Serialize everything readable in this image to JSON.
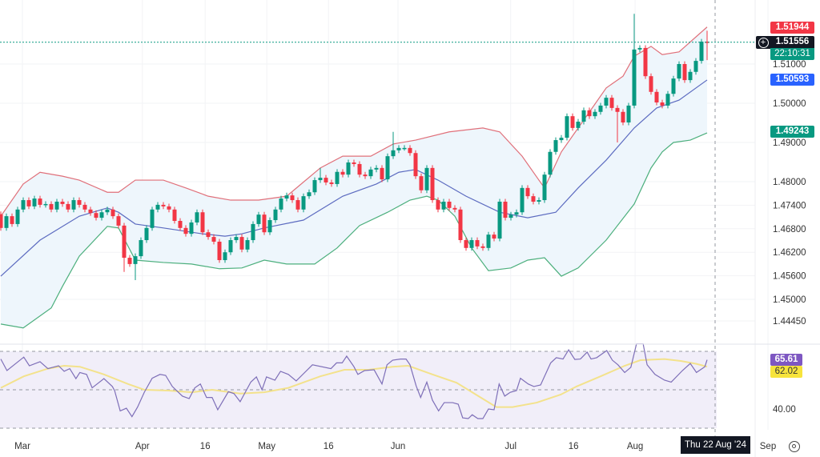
{
  "colors": {
    "up": "#089981",
    "down": "#f23645",
    "bb_upper": "#e0707a",
    "bb_mid": "#5c6bc0",
    "bb_lower": "#4caf7d",
    "bb_fill": "#eef6fc",
    "rsi": "#7e6fb8",
    "rsi_ma": "#f3e28c",
    "rsi_bg": "#f1eef9",
    "last_price": "#089981"
  },
  "chart_data": {
    "type": "candlestick",
    "x_axis_labels": [
      {
        "label": "Mar",
        "bar": 2
      },
      {
        "label": "Apr",
        "bar": 23.4
      },
      {
        "label": "16",
        "bar": 34.6
      },
      {
        "label": "May",
        "bar": 45.6
      },
      {
        "label": "16",
        "bar": 56.6
      },
      {
        "label": "Jun",
        "bar": 69
      },
      {
        "label": "Jul",
        "bar": 89.1
      },
      {
        "label": "16",
        "bar": 100.3
      },
      {
        "label": "Aug",
        "bar": 111.3
      },
      {
        "label": "Sep",
        "bar": 135
      }
    ],
    "y_axis_labels": [
      "1.51000",
      "1.50000",
      "1.49000",
      "1.48000",
      "1.47400",
      "1.46800",
      "1.46200",
      "1.45600",
      "1.45000",
      "1.44450"
    ],
    "first_open": 1.4717,
    "close": [
      1.4682,
      1.4712,
      1.4692,
      1.4729,
      1.4753,
      1.4737,
      1.4757,
      1.4741,
      1.4743,
      1.4729,
      1.4749,
      1.4743,
      1.4729,
      1.4753,
      1.4741,
      1.4729,
      1.472,
      1.4708,
      1.4722,
      1.4729,
      1.4712,
      1.4688,
      1.4606,
      1.459,
      1.461,
      1.4651,
      1.4682,
      1.4729,
      1.4741,
      1.4737,
      1.4729,
      1.47,
      1.4682,
      1.4667,
      1.4696,
      1.4722,
      1.4671,
      1.4659,
      1.4647,
      1.46,
      1.462,
      1.4651,
      1.4659,
      1.4627,
      1.4651,
      1.4692,
      1.4716,
      1.4671,
      1.4702,
      1.4729,
      1.4757,
      1.4765,
      1.4753,
      1.4729,
      1.4763,
      1.4773,
      1.4804,
      1.481,
      1.4798,
      1.4794,
      1.4825,
      1.4818,
      1.4849,
      1.4845,
      1.4818,
      1.4814,
      1.4831,
      1.4835,
      1.4806,
      1.4865,
      1.488,
      1.4886,
      1.4886,
      1.4873,
      1.4814,
      1.4778,
      1.4835,
      1.4753,
      1.4729,
      1.4749,
      1.4733,
      1.4729,
      1.4651,
      1.4631,
      1.4651,
      1.4635,
      1.4631,
      1.4665,
      1.4655,
      1.4749,
      1.4708,
      1.4716,
      1.4722,
      1.4784,
      1.4763,
      1.4749,
      1.4753,
      1.4818,
      1.4876,
      1.4906,
      1.4912,
      1.4967,
      1.4937,
      1.4953,
      1.4982,
      1.4967,
      1.4978,
      1.4994,
      1.5014,
      1.4988,
      1.4978,
      1.4951,
      1.4994,
      1.5137,
      1.5141,
      1.5069,
      1.5029,
      1.5002,
      1.4994,
      1.5024,
      1.5063,
      1.51,
      1.5059,
      1.508,
      1.5108,
      1.5157,
      1.51556
    ],
    "default_wick": 0.0007,
    "wick_highs": {
      "70": 1.4927,
      "113": 1.5228,
      "126": 1.5185,
      "57": 1.4835
    },
    "wick_lows": {
      "24": 1.4549,
      "22": 1.457,
      "110": 1.49,
      "126": 1.511
    },
    "bollinger": {
      "upper": [
        [
          0,
          1.4712
        ],
        [
          4,
          1.4794
        ],
        [
          7,
          1.4824
        ],
        [
          11,
          1.4814
        ],
        [
          14,
          1.4804
        ],
        [
          19,
          1.4773
        ],
        [
          21,
          1.4773
        ],
        [
          24,
          1.4804
        ],
        [
          29,
          1.4804
        ],
        [
          33,
          1.4784
        ],
        [
          37,
          1.4763
        ],
        [
          41,
          1.4753
        ],
        [
          46,
          1.4753
        ],
        [
          51,
          1.4763
        ],
        [
          57,
          1.4835
        ],
        [
          61,
          1.4865
        ],
        [
          66,
          1.4865
        ],
        [
          70,
          1.4896
        ],
        [
          74,
          1.4906
        ],
        [
          80,
          1.4927
        ],
        [
          86,
          1.4937
        ],
        [
          89,
          1.4927
        ],
        [
          93,
          1.4865
        ],
        [
          96,
          1.4804
        ],
        [
          97,
          1.4784
        ],
        [
          100,
          1.4876
        ],
        [
          103,
          1.4937
        ],
        [
          106,
          1.4998
        ],
        [
          108,
          1.5039
        ],
        [
          111,
          1.5069
        ],
        [
          113,
          1.512
        ],
        [
          116,
          1.5145
        ],
        [
          118,
          1.5124
        ],
        [
          121,
          1.5131
        ],
        [
          126,
          1.51944
        ]
      ],
      "middle": [
        [
          0,
          1.4559
        ],
        [
          7,
          1.4651
        ],
        [
          14,
          1.4712
        ],
        [
          19,
          1.4733
        ],
        [
          21,
          1.4722
        ],
        [
          24,
          1.4692
        ],
        [
          29,
          1.4682
        ],
        [
          36,
          1.4667
        ],
        [
          40,
          1.4661
        ],
        [
          43,
          1.4667
        ],
        [
          47,
          1.4682
        ],
        [
          54,
          1.4702
        ],
        [
          61,
          1.4763
        ],
        [
          67,
          1.4794
        ],
        [
          71,
          1.4824
        ],
        [
          74,
          1.4831
        ],
        [
          78,
          1.4804
        ],
        [
          83,
          1.4763
        ],
        [
          89,
          1.4722
        ],
        [
          94,
          1.4708
        ],
        [
          99,
          1.4722
        ],
        [
          103,
          1.4784
        ],
        [
          108,
          1.4855
        ],
        [
          113,
          1.4937
        ],
        [
          117,
          1.4988
        ],
        [
          121,
          1.5008
        ],
        [
          126,
          1.50593
        ]
      ],
      "lower": [
        [
          0,
          1.4437
        ],
        [
          4,
          1.4427
        ],
        [
          9,
          1.4478
        ],
        [
          11,
          1.4533
        ],
        [
          14,
          1.461
        ],
        [
          19,
          1.4686
        ],
        [
          21,
          1.4682
        ],
        [
          24,
          1.46
        ],
        [
          29,
          1.4594
        ],
        [
          34,
          1.459
        ],
        [
          39,
          1.4578
        ],
        [
          43,
          1.458
        ],
        [
          47,
          1.46
        ],
        [
          51,
          1.459
        ],
        [
          56,
          1.459
        ],
        [
          60,
          1.4631
        ],
        [
          64,
          1.4688
        ],
        [
          69,
          1.4722
        ],
        [
          73,
          1.4753
        ],
        [
          76,
          1.4763
        ],
        [
          78,
          1.4753
        ],
        [
          81,
          1.4712
        ],
        [
          84,
          1.4631
        ],
        [
          87,
          1.4573
        ],
        [
          91,
          1.458
        ],
        [
          94,
          1.46
        ],
        [
          97,
          1.4606
        ],
        [
          100,
          1.4559
        ],
        [
          103,
          1.458
        ],
        [
          108,
          1.4651
        ],
        [
          113,
          1.4743
        ],
        [
          116,
          1.4835
        ],
        [
          118,
          1.4876
        ],
        [
          120,
          1.49
        ],
        [
          123,
          1.4906
        ],
        [
          126,
          1.49243
        ]
      ]
    },
    "rsi": {
      "levels": [
        70,
        50,
        30
      ],
      "axis_label": "40.00",
      "line": [
        [
          0,
          66
        ],
        [
          1.1,
          60
        ],
        [
          4.1,
          67
        ],
        [
          5.1,
          62.5
        ],
        [
          7,
          64.6
        ],
        [
          8.4,
          61
        ],
        [
          10.3,
          62.5
        ],
        [
          11.3,
          59.6
        ],
        [
          12.3,
          61
        ],
        [
          13.4,
          55.8
        ],
        [
          14.1,
          59
        ],
        [
          15.3,
          58
        ],
        [
          16.3,
          51
        ],
        [
          18.4,
          55.8
        ],
        [
          19.9,
          51.7
        ],
        [
          20.3,
          49.6
        ],
        [
          21.3,
          39
        ],
        [
          22.4,
          40.4
        ],
        [
          23.4,
          36
        ],
        [
          24.4,
          41
        ],
        [
          25.6,
          48.7
        ],
        [
          27,
          56
        ],
        [
          28.4,
          58
        ],
        [
          29.4,
          57.5
        ],
        [
          30.6,
          51.7
        ],
        [
          32.4,
          46.7
        ],
        [
          33.6,
          45.4
        ],
        [
          34.6,
          51
        ],
        [
          35.6,
          53
        ],
        [
          36.7,
          46
        ],
        [
          37.7,
          46
        ],
        [
          38.7,
          39.6
        ],
        [
          40.6,
          49
        ],
        [
          41.6,
          48
        ],
        [
          42.7,
          43.8
        ],
        [
          44.6,
          54
        ],
        [
          45.6,
          56.7
        ],
        [
          46.6,
          50
        ],
        [
          47.4,
          56.7
        ],
        [
          48.9,
          55
        ],
        [
          49.9,
          59.6
        ],
        [
          51.3,
          58
        ],
        [
          52.7,
          54.6
        ],
        [
          55.6,
          63
        ],
        [
          58.9,
          61
        ],
        [
          59.9,
          64
        ],
        [
          60.9,
          64
        ],
        [
          61.7,
          67.5
        ],
        [
          63,
          62
        ],
        [
          63.7,
          58
        ],
        [
          64.9,
          60
        ],
        [
          66.6,
          60.4
        ],
        [
          68,
          53
        ],
        [
          68.9,
          63
        ],
        [
          69.9,
          65.4
        ],
        [
          71.3,
          66
        ],
        [
          72.3,
          66
        ],
        [
          73,
          63
        ],
        [
          74.1,
          52
        ],
        [
          74.9,
          46
        ],
        [
          76,
          54
        ],
        [
          77,
          44.6
        ],
        [
          78.1,
          39
        ],
        [
          79.1,
          43.3
        ],
        [
          80.6,
          43.3
        ],
        [
          81.6,
          42.5
        ],
        [
          82.4,
          35.4
        ],
        [
          83.4,
          35
        ],
        [
          84.1,
          37
        ],
        [
          85.1,
          35
        ],
        [
          86,
          35
        ],
        [
          87,
          40
        ],
        [
          88,
          39.6
        ],
        [
          88.9,
          53
        ],
        [
          89.9,
          46.7
        ],
        [
          90.9,
          48.7
        ],
        [
          92,
          49.6
        ],
        [
          92.7,
          56
        ],
        [
          94.1,
          53
        ],
        [
          95.1,
          51.7
        ],
        [
          96.3,
          52.5
        ],
        [
          98.1,
          64
        ],
        [
          99.1,
          66.7
        ],
        [
          100.3,
          66
        ],
        [
          101.3,
          70.8
        ],
        [
          102.4,
          65.8
        ],
        [
          103.4,
          66
        ],
        [
          104.6,
          69.6
        ],
        [
          105.3,
          66
        ],
        [
          106.3,
          66.7
        ],
        [
          108.1,
          70.4
        ],
        [
          109.1,
          65.4
        ],
        [
          110.1,
          63
        ],
        [
          111.3,
          59
        ],
        [
          112.4,
          61.7
        ],
        [
          113.4,
          73.8
        ],
        [
          114.6,
          73.8
        ],
        [
          115.3,
          63
        ],
        [
          116.7,
          58
        ],
        [
          118.4,
          55
        ],
        [
          119.6,
          54
        ],
        [
          121.6,
          60
        ],
        [
          123,
          63.7
        ],
        [
          124.1,
          59
        ],
        [
          125.6,
          62
        ],
        [
          126,
          65.61
        ]
      ],
      "ma": [
        [
          0,
          51
        ],
        [
          4.1,
          57
        ],
        [
          8.4,
          61
        ],
        [
          11.3,
          62.5
        ],
        [
          14.1,
          62
        ],
        [
          18.4,
          58
        ],
        [
          22.7,
          53
        ],
        [
          25.6,
          50
        ],
        [
          29.9,
          49.6
        ],
        [
          34.1,
          48.7
        ],
        [
          37.7,
          50
        ],
        [
          42.7,
          48
        ],
        [
          47,
          48.7
        ],
        [
          51.3,
          51
        ],
        [
          57,
          57
        ],
        [
          61.3,
          60.4
        ],
        [
          65.6,
          60.4
        ],
        [
          69.9,
          62
        ],
        [
          72.7,
          62.5
        ],
        [
          77,
          58
        ],
        [
          81.3,
          53.7
        ],
        [
          85.6,
          46
        ],
        [
          88.4,
          41
        ],
        [
          91.3,
          41
        ],
        [
          95.6,
          43.3
        ],
        [
          99.9,
          47.5
        ],
        [
          102.7,
          51.7
        ],
        [
          107,
          57
        ],
        [
          111.3,
          62.5
        ],
        [
          114.1,
          65.4
        ],
        [
          118.4,
          66
        ],
        [
          121.3,
          65
        ],
        [
          124.1,
          63.5
        ],
        [
          126,
          62.02
        ]
      ]
    }
  },
  "price_tags": {
    "upper_band": "1.51944",
    "last_price": "1.51556",
    "countdown": "22:10:31",
    "middle_band": "1.50593",
    "lower_band": "1.49243",
    "rsi_value": "65.61",
    "rsi_ma_value": "62.02"
  },
  "crosshair": {
    "date_label": "Thu 22 Aug '24"
  },
  "icons": {
    "add": "plus-circle-icon",
    "settings": "settings-icon"
  }
}
